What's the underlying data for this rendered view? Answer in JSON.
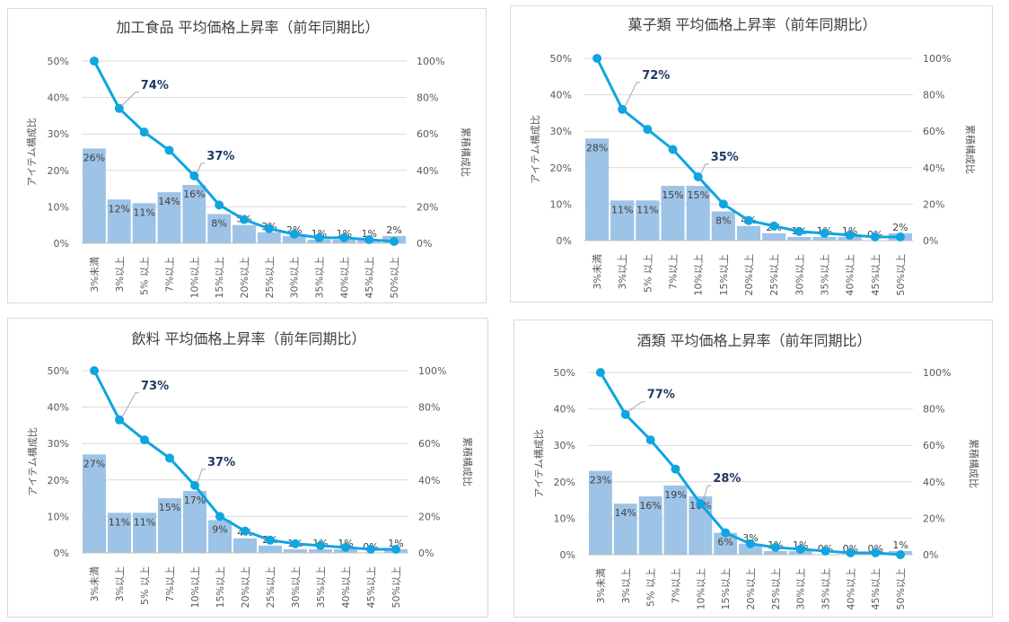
{
  "chart_data": [
    {
      "type": "bar",
      "title": "加工食品 平均価格上昇率（前年同期比）",
      "categories": [
        "3%未満",
        "3%以上",
        "5% 以上",
        "7%以上",
        "10%以上",
        "15%以上",
        "20%以上",
        "25%以上",
        "30%以上",
        "35%以上",
        "40%以上",
        "45%以上",
        "50%以上"
      ],
      "series": [
        {
          "name": "アイテム構成比",
          "type": "bar",
          "values": [
            26,
            12,
            11,
            14,
            16,
            8,
            5,
            3,
            2,
            1,
            1,
            1,
            2
          ]
        },
        {
          "name": "累積構成比",
          "type": "line",
          "axis": "right",
          "values": [
            100,
            74,
            61,
            51,
            37,
            21,
            13,
            8,
            5,
            3,
            3,
            2,
            1
          ]
        }
      ],
      "bar_labels": [
        "26%",
        "12%",
        "11%",
        "14%",
        "16%",
        "8%",
        "5%",
        "3%",
        "2%",
        "1%",
        "1%",
        "1%",
        "2%"
      ],
      "callouts": [
        {
          "index": 1,
          "text": "74%"
        },
        {
          "index": 4,
          "text": "37%"
        }
      ],
      "ylabel": "アイテム構成比",
      "y2label": "累積構成比",
      "ylim": [
        0,
        50
      ],
      "y2lim": [
        0,
        100
      ],
      "yticks": [
        "0%",
        "10%",
        "20%",
        "30%",
        "40%",
        "50%"
      ],
      "y2ticks": [
        "0%",
        "20%",
        "40%",
        "60%",
        "80%",
        "100%"
      ],
      "grid": true,
      "colors": {
        "bar": "#9dc3e6",
        "line": "#0fa5e1"
      }
    },
    {
      "type": "bar",
      "title": "菓子類  平均価格上昇率（前年同期比）",
      "categories": [
        "3%未満",
        "3%以上",
        "5% 以上",
        "7%以上",
        "10%以上",
        "15%以上",
        "20%以上",
        "25%以上",
        "30%以上",
        "35%以上",
        "40%以上",
        "45%以上",
        "50%以上"
      ],
      "series": [
        {
          "name": "アイテム構成比",
          "type": "bar",
          "values": [
            28,
            11,
            11,
            15,
            15,
            8,
            4,
            2,
            1,
            1,
            1,
            0,
            2
          ]
        },
        {
          "name": "累積構成比",
          "type": "line",
          "axis": "right",
          "values": [
            100,
            72,
            61,
            50,
            35,
            20,
            11,
            8,
            5,
            4,
            3,
            2,
            2
          ]
        }
      ],
      "bar_labels": [
        "28%",
        "11%",
        "11%",
        "15%",
        "15%",
        "8%",
        "4%",
        "2%",
        "1%",
        "1%",
        "1%",
        "0%",
        "2%"
      ],
      "callouts": [
        {
          "index": 1,
          "text": "72%"
        },
        {
          "index": 4,
          "text": "35%"
        }
      ],
      "ylabel": "アイテム構成比",
      "y2label": "累積構成比",
      "ylim": [
        0,
        50
      ],
      "y2lim": [
        0,
        100
      ],
      "yticks": [
        "0%",
        "10%",
        "20%",
        "30%",
        "40%",
        "50%"
      ],
      "y2ticks": [
        "0%",
        "20%",
        "40%",
        "60%",
        "80%",
        "100%"
      ],
      "grid": true,
      "colors": {
        "bar": "#9dc3e6",
        "line": "#0fa5e1"
      }
    },
    {
      "type": "bar",
      "title": "飲料  平均価格上昇率（前年同期比）",
      "categories": [
        "3%未満",
        "3%以上",
        "5% 以上",
        "7%以上",
        "10%以上",
        "15%以上",
        "20%以上",
        "25%以上",
        "30%以上",
        "35%以上",
        "40%以上",
        "45%以上",
        "50%以上"
      ],
      "series": [
        {
          "name": "アイテム構成比",
          "type": "bar",
          "values": [
            27,
            11,
            11,
            15,
            17,
            9,
            4,
            2,
            1,
            1,
            1,
            0,
            1
          ]
        },
        {
          "name": "累積構成比",
          "type": "line",
          "axis": "right",
          "values": [
            100,
            73,
            62,
            52,
            37,
            20,
            12,
            7,
            5,
            4,
            3,
            2,
            2
          ]
        }
      ],
      "bar_labels": [
        "27%",
        "11%",
        "11%",
        "15%",
        "17%",
        "9%",
        "4%",
        "2%",
        "1%",
        "1%",
        "1%",
        "0%",
        "1%"
      ],
      "callouts": [
        {
          "index": 1,
          "text": "73%"
        },
        {
          "index": 4,
          "text": "37%"
        }
      ],
      "ylabel": "アイテム構成比",
      "y2label": "累積構成比",
      "ylim": [
        0,
        50
      ],
      "y2lim": [
        0,
        100
      ],
      "yticks": [
        "0%",
        "10%",
        "20%",
        "30%",
        "40%",
        "50%"
      ],
      "y2ticks": [
        "0%",
        "20%",
        "40%",
        "60%",
        "80%",
        "100%"
      ],
      "grid": true,
      "colors": {
        "bar": "#9dc3e6",
        "line": "#0fa5e1"
      }
    },
    {
      "type": "bar",
      "title": "酒類  平均価格上昇率（前年同期比）",
      "categories": [
        "3%未満",
        "3%以上",
        "5% 以上",
        "7%以上",
        "10%以上",
        "15%以上",
        "20%以上",
        "25%以上",
        "30%以上",
        "35%以上",
        "40%以上",
        "45%以上",
        "50%以上"
      ],
      "series": [
        {
          "name": "アイテム構成比",
          "type": "bar",
          "values": [
            23,
            14,
            16,
            19,
            16,
            6,
            3,
            1,
            1,
            0,
            0,
            0,
            1
          ]
        },
        {
          "name": "累積構成比",
          "type": "line",
          "axis": "right",
          "values": [
            100,
            77,
            63,
            47,
            28,
            12,
            6,
            4,
            3,
            2,
            1,
            1,
            0
          ]
        }
      ],
      "bar_labels": [
        "23%",
        "14%",
        "16%",
        "19%",
        "16%",
        "6%",
        "3%",
        "1%",
        "1%",
        "0%",
        "0%",
        "0%",
        "1%"
      ],
      "callouts": [
        {
          "index": 1,
          "text": "77%"
        },
        {
          "index": 4,
          "text": "28%"
        }
      ],
      "ylabel": "アイテム構成比",
      "y2label": "累積構成比",
      "ylim": [
        0,
        50
      ],
      "y2lim": [
        0,
        100
      ],
      "yticks": [
        "0%",
        "10%",
        "20%",
        "30%",
        "40%",
        "50%"
      ],
      "y2ticks": [
        "0%",
        "20%",
        "40%",
        "60%",
        "80%",
        "100%"
      ],
      "grid": true,
      "colors": {
        "bar": "#9dc3e6",
        "line": "#0fa5e1"
      }
    }
  ]
}
